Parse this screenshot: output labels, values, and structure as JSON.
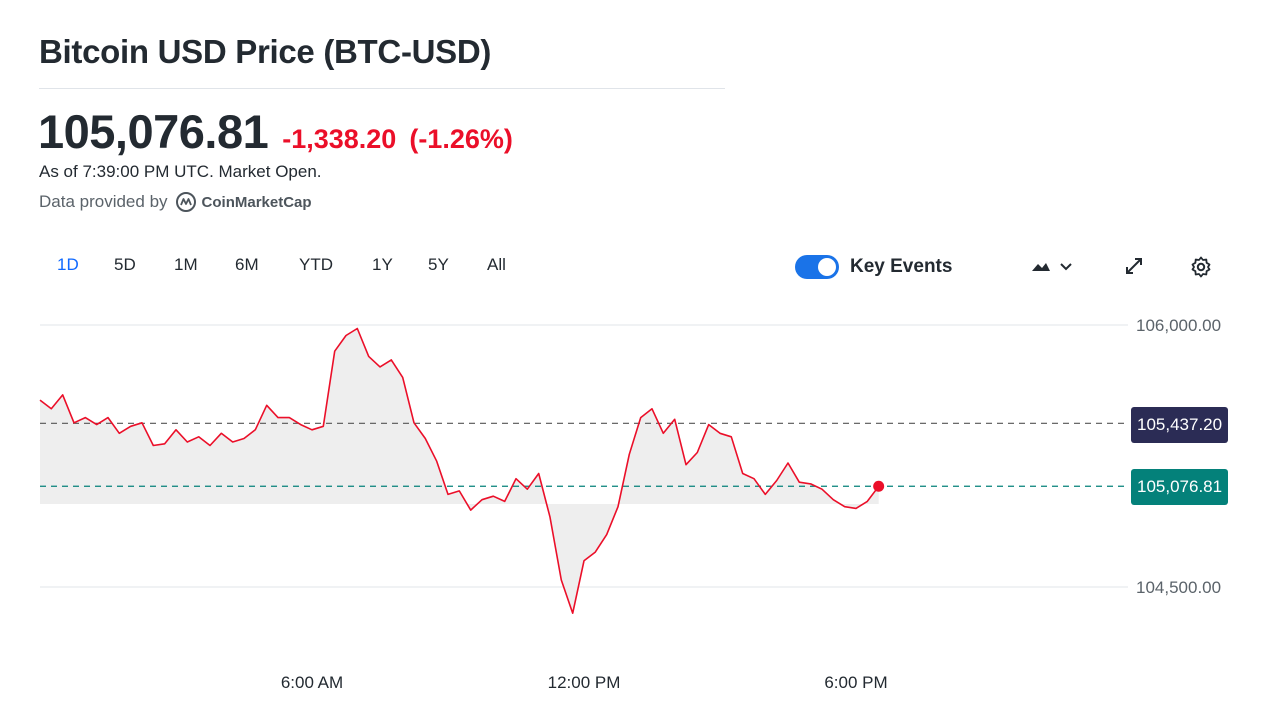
{
  "header": {
    "title": "Bitcoin USD Price (BTC-USD)",
    "price": "105,076.81",
    "change": "-1,338.20",
    "change_pct": "(-1.26%)",
    "as_of": "As of 7:39:00 PM UTC. Market Open.",
    "provider_prefix": "Data provided by",
    "provider_name": "CoinMarketCap"
  },
  "toolbar": {
    "ranges": [
      "1D",
      "5D",
      "1M",
      "6M",
      "YTD",
      "1Y",
      "5Y",
      "All"
    ],
    "active_range": "1D",
    "key_events_label": "Key Events",
    "key_events_on": true
  },
  "colors": {
    "up_down": "#eb0f29",
    "accent": "#0f69ff",
    "prev_close_tag": "#2b2c55",
    "current_tag": "#04817a"
  },
  "icons": [
    "mountain-chart-icon",
    "chevron-down-icon",
    "expand-icon",
    "gear-icon",
    "coinmarketcap-logo-icon"
  ],
  "chart_data": {
    "type": "line",
    "x_tick_labels": [
      "6:00 AM",
      "12:00 PM",
      "6:00 PM"
    ],
    "y_tick_labels": [
      "106,000.00",
      "104,500.00"
    ],
    "y_ticks": [
      106000,
      104500
    ],
    "ylim": [
      104100,
      106150
    ],
    "xlim_hours": [
      0,
      24
    ],
    "previous_close": 105437.2,
    "previous_close_label": "105,437.20",
    "current_price": 105076.81,
    "current_label": "105,076.81",
    "series": [
      {
        "values": [
          [
            0.0,
            105570
          ],
          [
            0.25,
            105520
          ],
          [
            0.5,
            105600
          ],
          [
            0.75,
            105440
          ],
          [
            1.0,
            105470
          ],
          [
            1.25,
            105430
          ],
          [
            1.5,
            105470
          ],
          [
            1.75,
            105380
          ],
          [
            2.0,
            105420
          ],
          [
            2.25,
            105440
          ],
          [
            2.5,
            105310
          ],
          [
            2.75,
            105320
          ],
          [
            3.0,
            105400
          ],
          [
            3.25,
            105330
          ],
          [
            3.5,
            105360
          ],
          [
            3.75,
            105310
          ],
          [
            4.0,
            105380
          ],
          [
            4.25,
            105330
          ],
          [
            4.5,
            105350
          ],
          [
            4.75,
            105400
          ],
          [
            5.0,
            105540
          ],
          [
            5.25,
            105470
          ],
          [
            5.5,
            105470
          ],
          [
            5.75,
            105430
          ],
          [
            6.0,
            105400
          ],
          [
            6.25,
            105420
          ],
          [
            6.5,
            105850
          ],
          [
            6.75,
            105940
          ],
          [
            7.0,
            105980
          ],
          [
            7.25,
            105820
          ],
          [
            7.5,
            105760
          ],
          [
            7.75,
            105800
          ],
          [
            8.0,
            105700
          ],
          [
            8.25,
            105440
          ],
          [
            8.5,
            105350
          ],
          [
            8.75,
            105220
          ],
          [
            9.0,
            105030
          ],
          [
            9.25,
            105050
          ],
          [
            9.5,
            104940
          ],
          [
            9.75,
            105000
          ],
          [
            10.0,
            105020
          ],
          [
            10.25,
            104990
          ],
          [
            10.5,
            105120
          ],
          [
            10.75,
            105060
          ],
          [
            11.0,
            105150
          ],
          [
            11.25,
            104900
          ],
          [
            11.5,
            104540
          ],
          [
            11.75,
            104350
          ],
          [
            12.0,
            104650
          ],
          [
            12.25,
            104700
          ],
          [
            12.5,
            104800
          ],
          [
            12.75,
            104960
          ],
          [
            13.0,
            105260
          ],
          [
            13.25,
            105470
          ],
          [
            13.5,
            105520
          ],
          [
            13.75,
            105380
          ],
          [
            14.0,
            105460
          ],
          [
            14.25,
            105200
          ],
          [
            14.5,
            105270
          ],
          [
            14.75,
            105430
          ],
          [
            15.0,
            105380
          ],
          [
            15.25,
            105360
          ],
          [
            15.5,
            105150
          ],
          [
            15.75,
            105120
          ],
          [
            16.0,
            105030
          ],
          [
            16.25,
            105110
          ],
          [
            16.5,
            105210
          ],
          [
            16.75,
            105100
          ],
          [
            17.0,
            105090
          ],
          [
            17.25,
            105060
          ],
          [
            17.5,
            105000
          ],
          [
            17.75,
            104960
          ],
          [
            18.0,
            104950
          ],
          [
            18.25,
            104990
          ],
          [
            18.5,
            105076.81
          ]
        ]
      }
    ]
  }
}
